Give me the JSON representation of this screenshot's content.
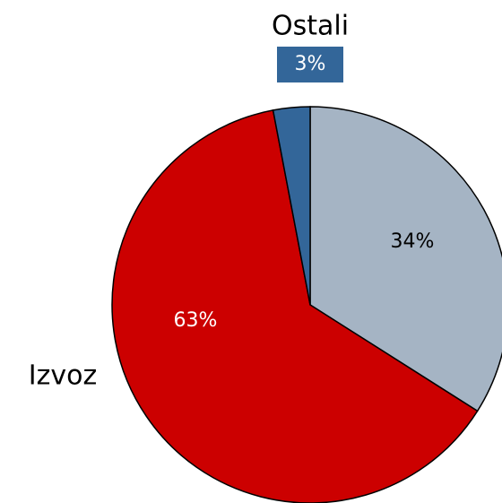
{
  "chart_data": {
    "type": "pie",
    "categories": [
      null,
      "Izvoz",
      "Ostali"
    ],
    "values": [
      34,
      63,
      3
    ],
    "value_labels": [
      "34%",
      "63%",
      "3%"
    ],
    "colors": [
      "#a5b4c4",
      "#cc0000",
      "#336699"
    ]
  }
}
